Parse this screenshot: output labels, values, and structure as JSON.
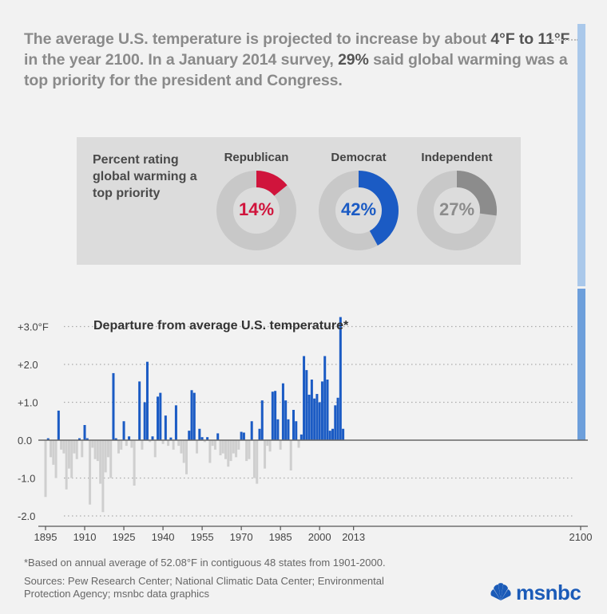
{
  "headline": {
    "part1": "The average U.S. temperature is projected to increase by about ",
    "highlight1": "4°F to 11°F",
    "part2": " in the year 2100. In a January 2014 survey, ",
    "highlight2": "29%",
    "part3": " said global warming was a top priority for the president and Congress."
  },
  "colors": {
    "republican": "#d0143c",
    "democrat": "#1b5bc4",
    "independent": "#8c8c8c",
    "donut_track": "#c8c8c8",
    "bar_positive": "#1b5bc4",
    "bar_negative": "#cfcfcf",
    "accent_light": "#aac8ea",
    "accent_dark": "#6d9fdb"
  },
  "survey": {
    "title": "Percent rating global warming a top priority",
    "parties": [
      {
        "name": "Republican",
        "percent": 14,
        "label": "14%",
        "color": "#d0143c"
      },
      {
        "name": "Democrat",
        "percent": 42,
        "label": "42%",
        "color": "#1b5bc4"
      },
      {
        "name": "Independent",
        "percent": 27,
        "label": "27%",
        "color": "#8c8c8c"
      }
    ]
  },
  "chart_data": {
    "type": "bar",
    "title": "Departure from average U.S. temperature*",
    "xlabel": "",
    "ylabel": "",
    "ylim": [
      -2.0,
      3.2
    ],
    "xlim": [
      1895,
      2100
    ],
    "y_ticks": [
      {
        "value": 3.0,
        "label": "+3.0°F"
      },
      {
        "value": 2.0,
        "label": "+2.0"
      },
      {
        "value": 1.0,
        "label": "+1.0"
      },
      {
        "value": 0.0,
        "label": "0.0"
      },
      {
        "value": -1.0,
        "label": "-1.0"
      },
      {
        "value": -2.0,
        "label": "-2.0"
      }
    ],
    "x_ticks": [
      "1895",
      "1910",
      "1925",
      "1940",
      "1955",
      "1970",
      "1985",
      "2000",
      "2013",
      "2100"
    ],
    "start_year": 1895,
    "values": [
      -1.5,
      0.05,
      -0.45,
      -0.65,
      -1.0,
      0.78,
      -0.25,
      -0.35,
      -1.3,
      -0.75,
      -1.0,
      -0.35,
      -0.5,
      0.05,
      -0.45,
      0.4,
      0.05,
      -1.7,
      -0.2,
      -0.5,
      -0.55,
      -1.15,
      -1.9,
      -0.85,
      -0.45,
      -1.0,
      1.77,
      0.05,
      -0.35,
      -0.25,
      0.5,
      -0.15,
      0.1,
      -0.2,
      -1.2,
      0.0,
      1.55,
      -0.25,
      1.0,
      2.07,
      -0.05,
      0.1,
      -0.45,
      1.15,
      1.25,
      -0.1,
      0.65,
      -0.15,
      0.07,
      -0.25,
      0.92,
      -0.15,
      -0.35,
      -0.6,
      -0.9,
      0.25,
      1.32,
      1.25,
      -0.35,
      0.3,
      0.08,
      -0.05,
      0.08,
      -0.6,
      -0.15,
      -0.25,
      0.18,
      -0.4,
      -0.35,
      -0.5,
      -0.7,
      -0.55,
      -0.35,
      -0.45,
      -0.25,
      0.22,
      0.2,
      -0.55,
      -0.5,
      0.5,
      -1.0,
      -1.15,
      0.3,
      1.05,
      -0.75,
      -0.15,
      -0.3,
      1.28,
      1.3,
      0.55,
      -0.25,
      1.5,
      1.05,
      0.55,
      -0.8,
      0.8,
      0.5,
      -0.2,
      0.15,
      2.22,
      1.85,
      1.2,
      1.6,
      1.1,
      1.22,
      1.0,
      1.55,
      2.22,
      1.6,
      0.25,
      0.3,
      0.92,
      1.12,
      3.25,
      0.3
    ]
  },
  "footnote": "*Based on annual average of 52.08°F in contiguous 48 states from 1901-2000.",
  "sources": "Sources: Pew Research Center; National Climatic Data Center; Environmental Protection Agency; msnbc data graphics",
  "logo": {
    "text": "msnbc",
    "icon": "peacock-icon"
  }
}
